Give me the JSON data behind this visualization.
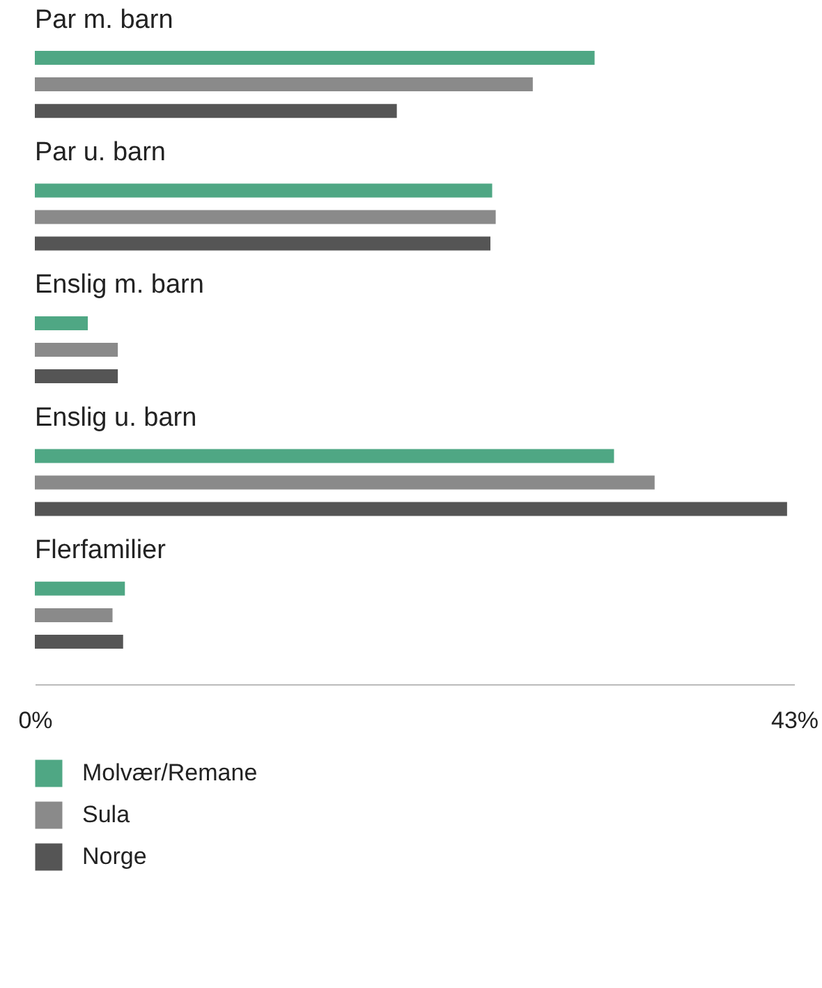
{
  "chart_data": {
    "type": "bar",
    "orientation": "horizontal",
    "categories": [
      "Par m. barn",
      "Par u. barn",
      "Enslig m. barn",
      "Enslig u. barn",
      "Flerfamilier"
    ],
    "series": [
      {
        "name": "Molvær/Remane",
        "color": "#4fa784",
        "values": [
          31.7,
          25.9,
          3.0,
          32.8,
          5.1
        ]
      },
      {
        "name": "Sula",
        "color": "#8a8a8a",
        "values": [
          28.2,
          26.1,
          4.7,
          35.1,
          4.4
        ]
      },
      {
        "name": "Norge",
        "color": "#555555",
        "values": [
          20.5,
          25.8,
          4.7,
          42.6,
          5.0
        ]
      }
    ],
    "xlim": [
      0,
      43
    ],
    "xticks": [
      {
        "value": 0,
        "label": "0%"
      },
      {
        "value": 43,
        "label": "43%"
      }
    ],
    "grid": false,
    "legend": "bottom left"
  }
}
